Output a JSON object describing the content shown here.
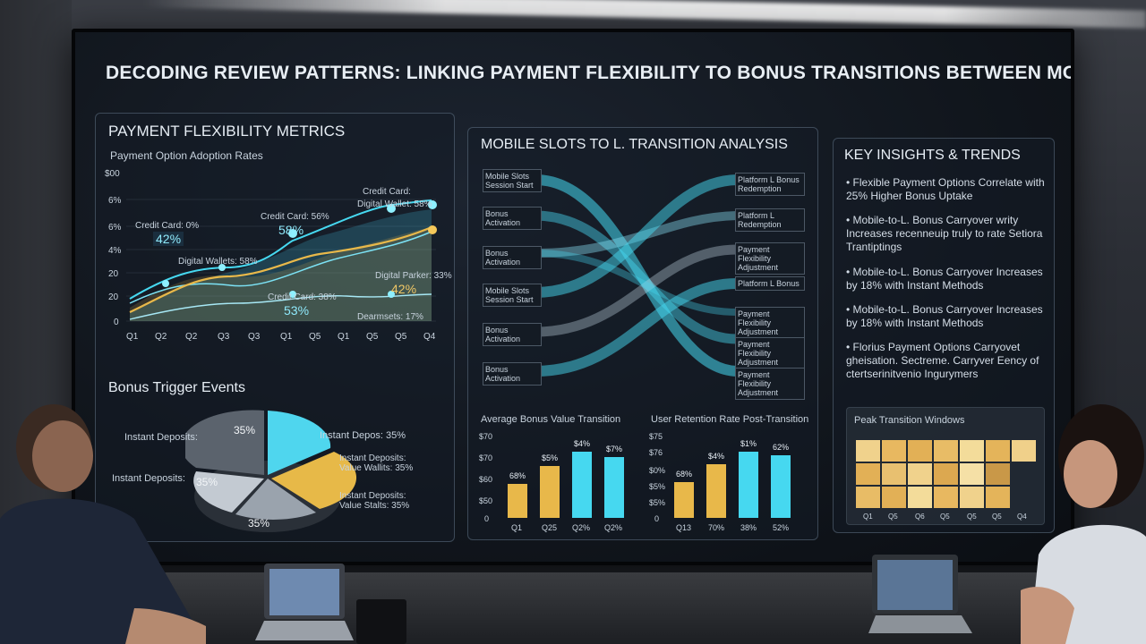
{
  "main_title": "DECODING REVIEW PATTERNS: LINKING PAYMENT FLEXIBILITY TO BONUS TRANSITIONS BETWEEN MOBILE SLOTS AND L.",
  "payment_panel": {
    "title": "PAYMENT FLEXIBILITY METRICS",
    "subtitle": "Payment Option Adoption Rates",
    "y_ticks": [
      "$00",
      "6%",
      "6%",
      "4%",
      "20",
      "20",
      "0"
    ],
    "x_ticks": [
      "Q1",
      "Q2",
      "Q2",
      "Q3",
      "Q3",
      "Q1",
      "Q5",
      "Q1",
      "Q5",
      "Q5",
      "Q4"
    ],
    "annotations": [
      {
        "label": "Credit Card: 0%",
        "value": "42%"
      },
      {
        "label": "Credit Card: 56%",
        "value": "58%"
      },
      {
        "label": "Credit Card:",
        "value": "Digital Wallet: 58%"
      },
      {
        "label": "Digital Wallets: 58%",
        "value": ""
      },
      {
        "label": "Digital Parker: 33%",
        "value": "42%"
      },
      {
        "label": "Credit Card: 38%",
        "value": "53%"
      },
      {
        "label": "Dearmsets: 17%",
        "value": ""
      }
    ]
  },
  "bonus_panel": {
    "title": "Bonus Trigger Events",
    "labels": [
      "Instant Deposits:",
      "Instant Deposits:",
      "Instant Depos: 35%",
      "Instant Deposits: Value Wallits: 35%",
      "Instant Deposits: Value Stalts: 35%"
    ],
    "slice_labels": [
      "35%",
      "35%",
      "35%"
    ]
  },
  "transition_panel": {
    "title": "MOBILE SLOTS TO L. TRANSITION ANALYSIS",
    "left_nodes": [
      "Mobile Slots Session Start",
      "Bonus Activation",
      "Bonus Activation",
      "Mobile Slots Session Start",
      "Bonus Activation",
      "Bonus Activation"
    ],
    "right_nodes": [
      "Platform L Bonus Redemption",
      "Platform L Redemption",
      "Payment Flexibility Adjustment",
      "Platform L Bonus",
      "Payment Flexibility Adjustment",
      "Payment Flexibility Adjustment",
      "Payment Flexibility Adjustment"
    ],
    "bar_chart_1": {
      "title": "Average Bonus Value Transition",
      "y_ticks": [
        "$70",
        "$70",
        "$60",
        "$50",
        "0"
      ],
      "categories": [
        "Q1",
        "Q25",
        "Q2%",
        "Q2%"
      ],
      "value_labels": [
        "68%",
        "$5%",
        "$4%",
        "$7%"
      ]
    },
    "bar_chart_2": {
      "title": "User Retention Rate Post-Transition",
      "y_ticks": [
        "$75",
        "$76",
        "$0%",
        "$5%",
        "$5%",
        "0"
      ],
      "categories": [
        "Q13",
        "70%",
        "38%",
        "52%"
      ],
      "value_labels": [
        "68%",
        "$4%",
        "$1%",
        "62%"
      ]
    }
  },
  "insights_panel": {
    "title": "KEY INSIGHTS & TRENDS",
    "items": [
      "• Flexible Payment Options Correlate with 25% Higher Bonus Uptake",
      "• Mobile-to-L. Bonus Carryover writy Increases recenneuip truly to rate Setiora Trantiptings",
      "• Mobile-to-L. Bonus Carryover Increases by 18% with Instant Methods",
      "• Mobile-to-L. Bonus Carryover Increases by 18% with Instant Methods",
      "• Florius Payment Options Carryovet gheisation. Sectreme. Carryver Eency of ctertserinitvenio Ingurymers"
    ],
    "heatmap": {
      "title": "Peak Transition Windows",
      "x_ticks": [
        "Q1",
        "Q5",
        "Q6",
        "Q5",
        "Q5",
        "Q5",
        "Q4"
      ]
    }
  },
  "colors": {
    "cyan": "#46d8f0",
    "gold": "#e8b84a",
    "panel_border": "#8ca5be"
  }
}
